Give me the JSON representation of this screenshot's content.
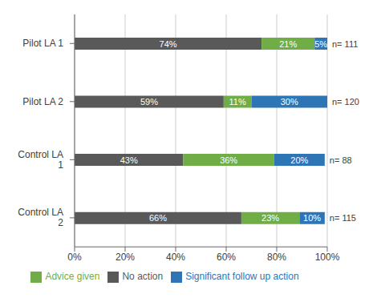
{
  "chart_data": {
    "type": "bar",
    "orientation": "horizontal",
    "stacked": true,
    "categories": [
      "Pilot LA 1",
      "Pilot LA 2",
      "Control LA\n1",
      "Control LA\n2"
    ],
    "series": [
      {
        "name": "No action",
        "color": "#595959",
        "values": [
          74,
          59,
          43,
          66
        ],
        "value_labels": [
          "74%",
          "59%",
          "43%",
          "66%"
        ]
      },
      {
        "name": "Advice given",
        "color": "#70ad47",
        "values": [
          21,
          11,
          36,
          23
        ],
        "value_labels": [
          "21%",
          "11%",
          "36%",
          "23%"
        ]
      },
      {
        "name": "Significant follow up action",
        "color": "#2e75b6",
        "values": [
          5,
          30,
          20,
          10
        ],
        "value_labels": [
          "5%",
          "30%",
          "20%",
          "10%"
        ]
      }
    ],
    "annotations": [
      "n= 111",
      "n= 120",
      "n= 88",
      "n= 115"
    ],
    "xlim": [
      0,
      100
    ],
    "xticks": [
      {
        "value": 0,
        "label": "0%"
      },
      {
        "value": 20,
        "label": "20%"
      },
      {
        "value": 40,
        "label": "40%"
      },
      {
        "value": 60,
        "label": "60%"
      },
      {
        "value": 80,
        "label": "80%"
      },
      {
        "value": 100,
        "label": "100%"
      }
    ],
    "grid": true,
    "data_labels": true,
    "legend": "bottom"
  }
}
